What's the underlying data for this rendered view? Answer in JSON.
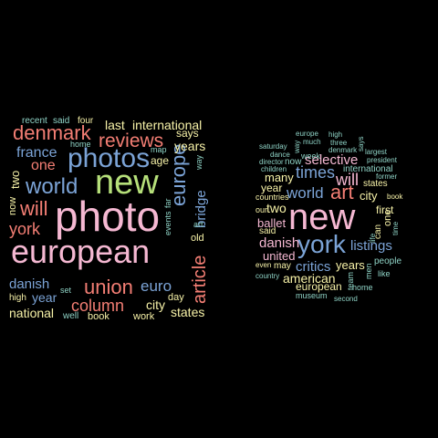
{
  "palette": {
    "pink": "#f5b8d2",
    "blue": "#7ba3d6",
    "green": "#b6e07a",
    "red": "#f37e74",
    "yellow": "#f7f2a8",
    "teal": "#8fd3c6"
  },
  "left_cloud": {
    "words": [
      {
        "text": "european"
      },
      {
        "text": "photo"
      },
      {
        "text": "new"
      },
      {
        "text": "photos"
      },
      {
        "text": "reviews"
      },
      {
        "text": "denmark"
      },
      {
        "text": "world"
      },
      {
        "text": "union"
      },
      {
        "text": "column"
      },
      {
        "text": "europe"
      },
      {
        "text": "article"
      },
      {
        "text": "will"
      },
      {
        "text": "york"
      },
      {
        "text": "france"
      },
      {
        "text": "one"
      },
      {
        "text": "euro"
      },
      {
        "text": "danish"
      },
      {
        "text": "last"
      },
      {
        "text": "international"
      },
      {
        "text": "years"
      },
      {
        "text": "bridge"
      },
      {
        "text": "year"
      },
      {
        "text": "city"
      },
      {
        "text": "states"
      },
      {
        "text": "national"
      },
      {
        "text": "says"
      },
      {
        "text": "two"
      },
      {
        "text": "age"
      },
      {
        "text": "now"
      },
      {
        "text": "old"
      },
      {
        "text": "day"
      },
      {
        "text": "work"
      },
      {
        "text": "book"
      },
      {
        "text": "high"
      },
      {
        "text": "well"
      },
      {
        "text": "recent"
      },
      {
        "text": "said"
      },
      {
        "text": "four"
      },
      {
        "text": "home"
      },
      {
        "text": "map"
      },
      {
        "text": "events"
      },
      {
        "text": "far"
      },
      {
        "text": "art"
      },
      {
        "text": "way"
      },
      {
        "text": "set"
      }
    ]
  },
  "right_cloud": {
    "words": [
      {
        "text": "new"
      },
      {
        "text": "york"
      },
      {
        "text": "art"
      },
      {
        "text": "world"
      },
      {
        "text": "times"
      },
      {
        "text": "selective"
      },
      {
        "text": "will"
      },
      {
        "text": "listings"
      },
      {
        "text": "critics"
      },
      {
        "text": "american"
      },
      {
        "text": "danish"
      },
      {
        "text": "united"
      },
      {
        "text": "years"
      },
      {
        "text": "city"
      },
      {
        "text": "two"
      },
      {
        "text": "many"
      },
      {
        "text": "year"
      },
      {
        "text": "ballet"
      },
      {
        "text": "first"
      },
      {
        "text": "european"
      },
      {
        "text": "international"
      },
      {
        "text": "states"
      },
      {
        "text": "now"
      },
      {
        "text": "said"
      },
      {
        "text": "may"
      },
      {
        "text": "one"
      },
      {
        "text": "can"
      },
      {
        "text": "people"
      },
      {
        "text": "like"
      },
      {
        "text": "home"
      },
      {
        "text": "museum"
      },
      {
        "text": "second"
      },
      {
        "text": "team"
      },
      {
        "text": "men"
      },
      {
        "text": "week"
      },
      {
        "text": "europe"
      },
      {
        "text": "high"
      },
      {
        "text": "much"
      },
      {
        "text": "three"
      },
      {
        "text": "says"
      },
      {
        "text": "denmark"
      },
      {
        "text": "largest"
      },
      {
        "text": "president"
      },
      {
        "text": "saturday"
      },
      {
        "text": "dance"
      },
      {
        "text": "director"
      },
      {
        "text": "children"
      },
      {
        "text": "former"
      },
      {
        "text": "countries"
      },
      {
        "text": "even"
      },
      {
        "text": "country"
      },
      {
        "text": "way"
      },
      {
        "text": "life"
      },
      {
        "text": "time"
      },
      {
        "text": "book"
      },
      {
        "text": "our"
      }
    ]
  }
}
